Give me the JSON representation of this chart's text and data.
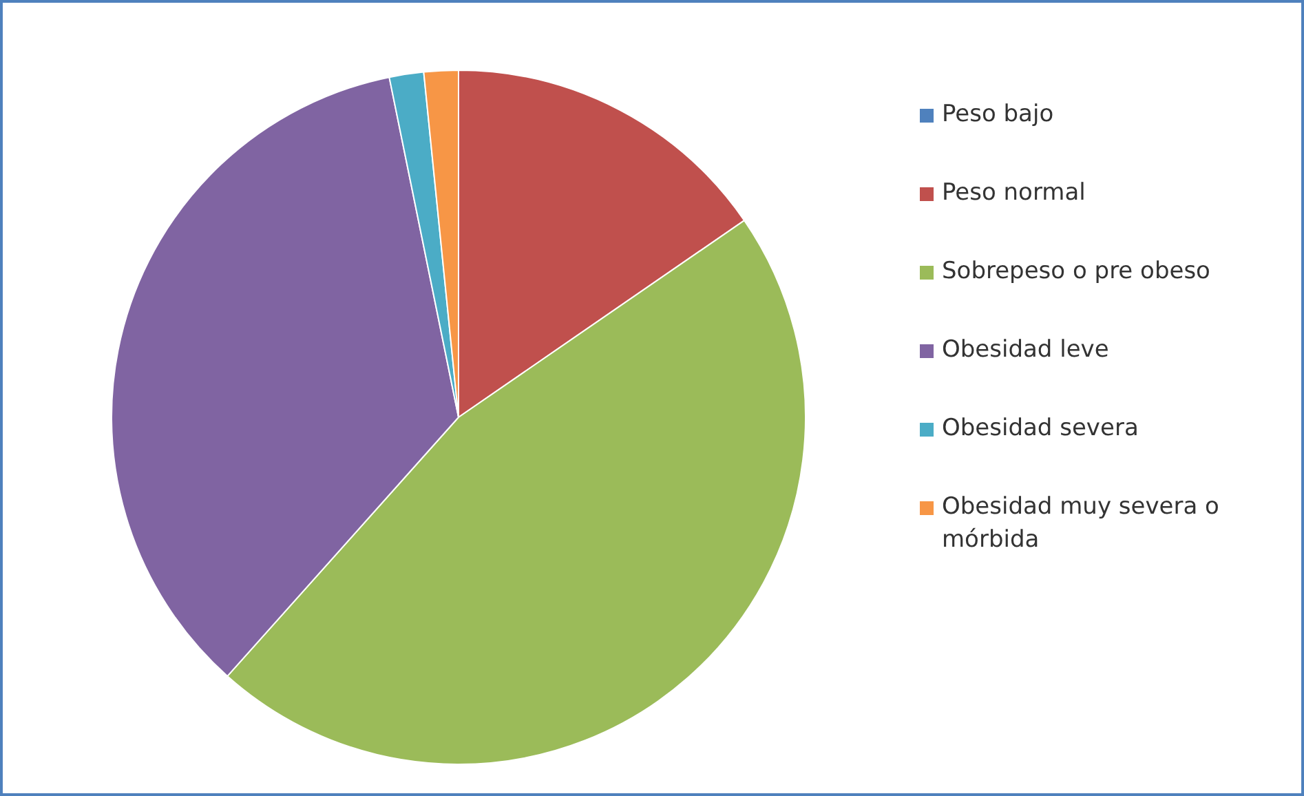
{
  "chart_data": {
    "type": "pie",
    "categories": [
      "Peso bajo",
      "Peso normal",
      "Sobrepeso o pre obeso",
      "Obesidad leve",
      "Obesidad severa",
      "Obesidad muy severa o mórbida"
    ],
    "values": [
      0,
      15.4,
      46.2,
      35.2,
      1.6,
      1.6
    ],
    "colors": [
      "#4f81bd",
      "#c0504d",
      "#9bbb59",
      "#8064a2",
      "#4bacc6",
      "#f79646"
    ],
    "legend": "right"
  }
}
